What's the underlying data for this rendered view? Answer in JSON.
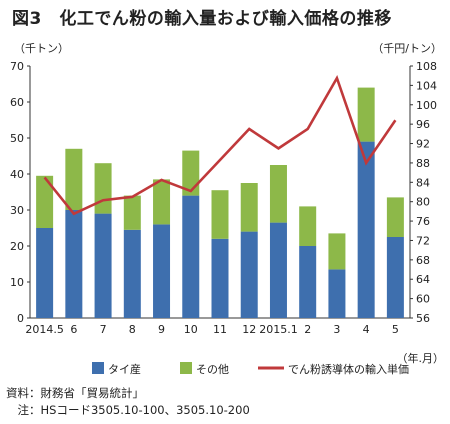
{
  "title": "図3　化工でん粉の輸入量および輸入価格の推移",
  "chart_data": {
    "type": "bar",
    "stacked": true,
    "categories": [
      "2014.5",
      "6",
      "7",
      "8",
      "9",
      "10",
      "11",
      "12",
      "2015.1",
      "2",
      "3",
      "4",
      "5"
    ],
    "series": [
      {
        "name": "タイ産",
        "color": "#3e6fae",
        "values": [
          25,
          30,
          29,
          24.5,
          26,
          34,
          22,
          24,
          26.5,
          20,
          13.5,
          49,
          22.5
        ]
      },
      {
        "name": "その他",
        "color": "#8db849",
        "values": [
          14.5,
          17,
          14,
          9.5,
          12.5,
          12.5,
          13.5,
          13.5,
          16,
          11,
          10,
          15,
          11
        ]
      }
    ],
    "line_series": {
      "name": "でん粉誘導体の輸入単価",
      "color": "#c0393b",
      "axis": "right",
      "values": [
        85,
        77.5,
        80.3,
        81,
        84.5,
        82.2,
        88.6,
        95,
        91,
        95,
        105.5,
        88,
        96.8
      ]
    },
    "ylabel": "（千トン）",
    "y2label": "（千円/トン）",
    "xlabel": "（年.月）",
    "ylim": [
      0,
      70
    ],
    "yticks": [
      0,
      10,
      20,
      30,
      40,
      50,
      60,
      70
    ],
    "y2lim": [
      56,
      108
    ],
    "y2ticks": [
      56,
      60,
      64,
      68,
      72,
      76,
      80,
      84,
      88,
      92,
      96,
      100,
      104,
      108
    ],
    "grid": false,
    "legend_position": "bottom"
  },
  "notes": {
    "source": "資料：財務省「貿易統計」",
    "note": "　注：HSコード3505.10-100、3505.10-200"
  }
}
